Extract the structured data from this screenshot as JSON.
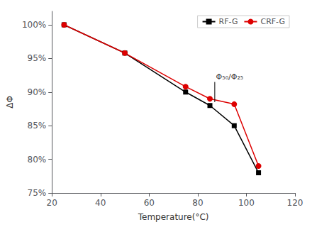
{
  "chart_data": {
    "type": "line",
    "xlabel": "Temperature(°C)",
    "ylabel": "ΔΦ",
    "series": [
      {
        "name": "RF-G",
        "color": "#000000",
        "marker": "square",
        "x": [
          25,
          50,
          75,
          85,
          95,
          105
        ],
        "values": [
          100,
          95.8,
          90.0,
          88.0,
          85.0,
          78.0
        ]
      },
      {
        "name": "CRF-G",
        "color": "#dd0000",
        "marker": "circle",
        "x": [
          25,
          50,
          75,
          85,
          95,
          105
        ],
        "values": [
          100,
          95.8,
          90.8,
          89.0,
          88.2,
          79.0
        ]
      }
    ],
    "xlim": [
      20,
      120
    ],
    "xticks": [
      20,
      40,
      60,
      80,
      100,
      120
    ],
    "ylim": [
      75,
      102
    ],
    "yticks": [
      {
        "value": 75,
        "label": "75%"
      },
      {
        "value": 80,
        "label": "80%"
      },
      {
        "value": 85,
        "label": "85%"
      },
      {
        "value": 90,
        "label": "90%"
      },
      {
        "value": 95,
        "label": "95%"
      },
      {
        "value": 100,
        "label": "100%"
      }
    ],
    "grid": false,
    "legend": "upper right",
    "annotations": [
      {
        "text": "Φ₅₀/Φ₂₅",
        "x": 87.5,
        "y": 91.7,
        "line_x": 87,
        "line_y": [
          88.5,
          91.5
        ]
      }
    ]
  }
}
